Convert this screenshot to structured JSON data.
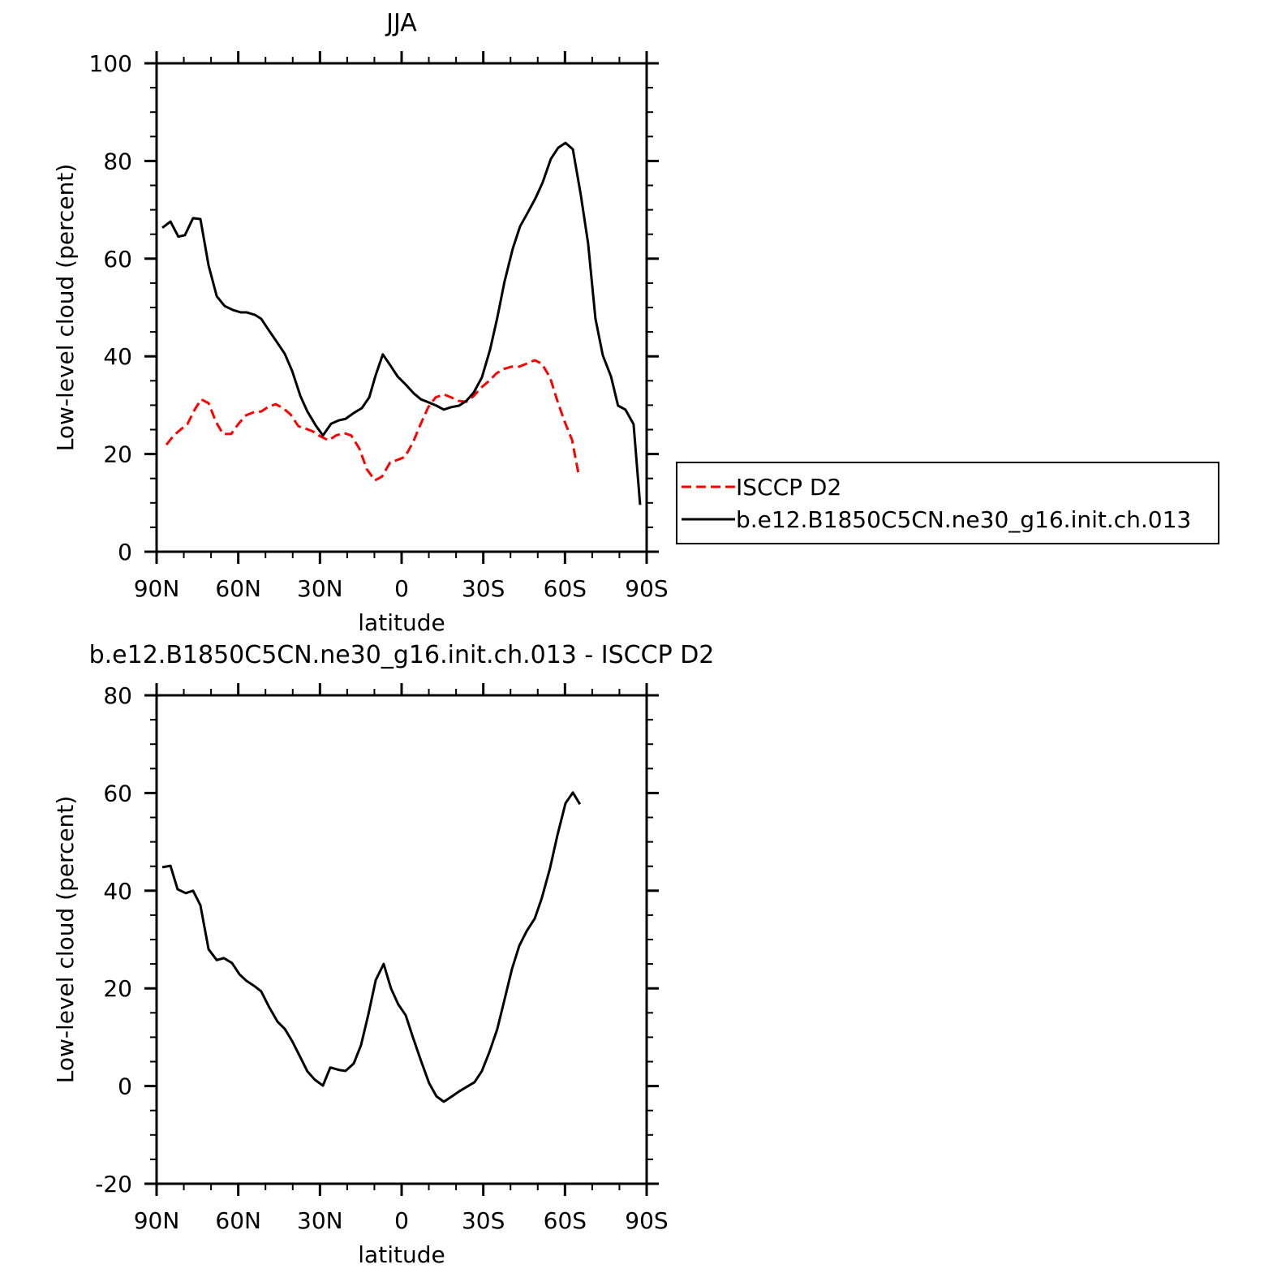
{
  "chart_data": [
    {
      "type": "line",
      "title": "JJA",
      "xlabel": "latitude",
      "ylabel": "Low-level cloud (percent)",
      "xlim": [
        90,
        -90
      ],
      "xticks": [
        {
          "value": 90,
          "label": "90N"
        },
        {
          "value": 60,
          "label": "60N"
        },
        {
          "value": 30,
          "label": "30N"
        },
        0,
        {
          "value": -30,
          "label": "30S"
        },
        {
          "value": -60,
          "label": "60S"
        },
        {
          "value": -90,
          "label": "90S"
        }
      ],
      "ylim": [
        0,
        100
      ],
      "yticks": [
        0,
        20,
        40,
        60,
        80,
        100
      ],
      "legend": "right",
      "series": [
        {
          "name": "ISCCP D2",
          "color": "#ff0000",
          "dash": true,
          "x": [
            86.4,
            83.7,
            81.4,
            78.7,
            76.0,
            73.6,
            70.9,
            68.2,
            65.6,
            62.6,
            59.9,
            57.2,
            54.2,
            51.6,
            48.9,
            46.2,
            43.5,
            40.8,
            37.9,
            35.2,
            32.5,
            29.8,
            26.8,
            24.1,
            21.2,
            18.5,
            15.5,
            12.8,
            9.8,
            7.2,
            4.2,
            1.5,
            -1.2,
            -4.2,
            -6.8,
            -9.8,
            -12.5,
            -15.5,
            -18.2,
            -20.8,
            -23.8,
            -26.5,
            -29.2,
            -32.2,
            -34.8,
            -37.5,
            -40.5,
            -43.2,
            -45.9,
            -48.9,
            -51.5,
            -54.5,
            -57.2,
            -59.9,
            -62.6,
            -65.2
          ],
          "values": [
            21.9,
            23.8,
            24.9,
            26.1,
            29.1,
            31.2,
            30.4,
            26.6,
            24.1,
            24.1,
            26.2,
            27.9,
            28.6,
            28.7,
            29.7,
            30.2,
            29.4,
            28.1,
            25.7,
            25.2,
            24.6,
            23.6,
            22.8,
            23.8,
            24.3,
            23.8,
            21.1,
            16.9,
            14.6,
            15.4,
            18.3,
            18.8,
            19.4,
            22.4,
            25.9,
            29.6,
            31.6,
            32.2,
            31.6,
            30.9,
            30.7,
            31.9,
            33.6,
            35.0,
            36.5,
            37.4,
            37.9,
            37.9,
            38.5,
            39.2,
            38.5,
            35.7,
            30.9,
            26.6,
            22.9,
            15.3
          ]
        },
        {
          "name": "b.e12.B1850C5CN.ne30_g16.init.ch.013",
          "color": "#000000",
          "dash": false,
          "x": [
            87.9,
            84.9,
            82.0,
            79.6,
            76.6,
            73.9,
            70.9,
            67.9,
            65.0,
            62.0,
            59.0,
            56.9,
            53.9,
            51.6,
            48.6,
            45.9,
            42.9,
            40.2,
            37.2,
            34.6,
            31.6,
            28.9,
            25.9,
            23.0,
            20.6,
            17.6,
            14.6,
            11.9,
            9.5,
            6.9,
            4.2,
            1.5,
            -1.2,
            -4.5,
            -7.1,
            -9.8,
            -12.8,
            -15.5,
            -18.2,
            -21.1,
            -23.8,
            -26.5,
            -29.5,
            -32.5,
            -35.1,
            -37.8,
            -40.8,
            -43.5,
            -46.2,
            -49.2,
            -51.8,
            -54.8,
            -57.5,
            -60.2,
            -62.9,
            -65.8,
            -68.5,
            -71.2,
            -73.9,
            -76.9,
            -79.5,
            -82.2,
            -85.2,
            -87.6
          ],
          "values": [
            66.3,
            67.6,
            64.5,
            64.8,
            68.3,
            68.1,
            58.6,
            52.3,
            50.3,
            49.5,
            49.0,
            49.0,
            48.5,
            47.7,
            45.2,
            43.0,
            40.5,
            37.0,
            31.9,
            28.7,
            25.9,
            23.8,
            26.2,
            26.9,
            27.2,
            28.4,
            29.4,
            31.6,
            36.2,
            40.4,
            38.2,
            35.9,
            34.4,
            32.4,
            31.2,
            30.6,
            29.9,
            29.1,
            29.6,
            29.9,
            30.9,
            32.6,
            35.7,
            41.4,
            47.8,
            55.3,
            62.0,
            66.6,
            69.3,
            72.4,
            75.6,
            80.4,
            82.7,
            83.7,
            82.4,
            73.1,
            63.1,
            47.7,
            40.2,
            35.9,
            29.9,
            29.1,
            26.1,
            9.6
          ]
        }
      ]
    },
    {
      "type": "line",
      "title": "b.e12.B1850C5CN.ne30_g16.init.ch.013 - ISCCP D2",
      "xlabel": "latitude",
      "ylabel": "Low-level cloud (percent)",
      "xlim": [
        90,
        -90
      ],
      "xticks": [
        {
          "value": 90,
          "label": "90N"
        },
        {
          "value": 60,
          "label": "60N"
        },
        {
          "value": 30,
          "label": "30N"
        },
        0,
        {
          "value": -30,
          "label": "30S"
        },
        {
          "value": -60,
          "label": "60S"
        },
        {
          "value": -90,
          "label": "90S"
        }
      ],
      "ylim": [
        -20,
        80
      ],
      "yticks": [
        -20,
        0,
        20,
        40,
        60,
        80
      ],
      "series": [
        {
          "color": "#000000",
          "dash": false,
          "x": [
            87.9,
            84.9,
            82.3,
            79.3,
            76.6,
            73.9,
            70.9,
            67.9,
            65.3,
            62.3,
            59.6,
            56.9,
            53.9,
            51.6,
            48.6,
            45.6,
            42.9,
            40.2,
            37.2,
            34.6,
            31.9,
            28.9,
            26.2,
            23.0,
            20.6,
            17.6,
            14.9,
            12.2,
            9.5,
            6.6,
            3.9,
            1.2,
            -1.5,
            -4.2,
            -7.1,
            -10.1,
            -12.8,
            -15.5,
            -18.5,
            -21.1,
            -24.1,
            -26.8,
            -29.5,
            -32.2,
            -35.1,
            -37.8,
            -40.5,
            -43.2,
            -45.9,
            -48.9,
            -51.5,
            -54.5,
            -57.2,
            -60.2,
            -62.9,
            -65.5
          ],
          "values": [
            44.8,
            45.1,
            40.3,
            39.5,
            40.0,
            37.0,
            28.0,
            25.8,
            26.2,
            25.2,
            22.9,
            21.5,
            20.4,
            19.4,
            16.1,
            13.2,
            11.7,
            9.2,
            5.9,
            3.0,
            1.3,
            0.1,
            3.8,
            3.3,
            3.1,
            4.6,
            8.4,
            14.7,
            21.7,
            25.0,
            20.0,
            16.7,
            14.5,
            9.9,
            5.2,
            0.6,
            -2.1,
            -3.2,
            -2.1,
            -1.1,
            -0.1,
            0.8,
            3.1,
            6.9,
            11.6,
            17.7,
            23.9,
            28.7,
            31.7,
            34.3,
            38.5,
            44.6,
            51.3,
            57.9,
            60.1,
            57.7
          ]
        }
      ]
    }
  ]
}
